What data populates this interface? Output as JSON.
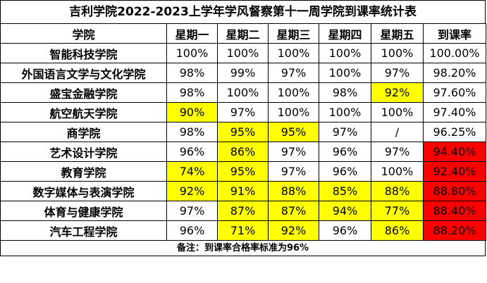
{
  "title": "吉利学院2022-2023上学年学风督察第十一周学院到课率统计表",
  "headers": [
    "学院",
    "星期一",
    "星期二",
    "星期三",
    "星期四",
    "星期五",
    "到课率"
  ],
  "rows": [
    {
      "college": "智能科技学院",
      "days": [
        "100%",
        "100%",
        "100%",
        "100%",
        "100%"
      ],
      "rate": "100.00%",
      "highlight": [],
      "rate_red": false
    },
    {
      "college": "外国语言文学与文化学院",
      "days": [
        "98%",
        "99%",
        "97%",
        "100%",
        "97%"
      ],
      "rate": "98.20%",
      "highlight": [],
      "rate_red": false
    },
    {
      "college": "盛宝金融学院",
      "days": [
        "98%",
        "100%",
        "100%",
        "98%",
        "92%"
      ],
      "rate": "97.60%",
      "highlight": [
        4
      ],
      "rate_red": false
    },
    {
      "college": "航空航天学院",
      "days": [
        "90%",
        "97%",
        "100%",
        "100%",
        "100%"
      ],
      "rate": "97.40%",
      "highlight": [
        0
      ],
      "rate_red": false
    },
    {
      "college": "商学院",
      "days": [
        "98%",
        "95%",
        "95%",
        "97%",
        "/"
      ],
      "rate": "96.25%",
      "highlight": [
        1,
        2
      ],
      "rate_red": false
    },
    {
      "college": "艺术设计学院",
      "days": [
        "96%",
        "86%",
        "97%",
        "96%",
        "97%"
      ],
      "rate": "94.40%",
      "highlight": [
        1
      ],
      "rate_red": true
    },
    {
      "college": "教育学院",
      "days": [
        "74%",
        "95%",
        "97%",
        "96%",
        "100%"
      ],
      "rate": "92.40%",
      "highlight": [
        0,
        1
      ],
      "rate_red": true
    },
    {
      "college": "数字媒体与表演学院",
      "days": [
        "92%",
        "91%",
        "88%",
        "85%",
        "88%"
      ],
      "rate": "88.80%",
      "highlight": [
        0,
        1,
        2,
        3,
        4
      ],
      "rate_red": true
    },
    {
      "college": "体育与健康学院",
      "days": [
        "97%",
        "87%",
        "87%",
        "94%",
        "77%"
      ],
      "rate": "88.40%",
      "highlight": [
        1,
        2,
        3,
        4
      ],
      "rate_red": true
    },
    {
      "college": "汽车工程学院",
      "days": [
        "96%",
        "71%",
        "92%",
        "96%",
        "86%"
      ],
      "rate": "88.20%",
      "highlight": [
        1,
        2,
        4
      ],
      "rate_red": true
    }
  ],
  "note": "备注：到课率合格率标准为96%",
  "colors": {
    "below_standard": "#ffff00",
    "rate_below_standard": "#ff0000"
  }
}
